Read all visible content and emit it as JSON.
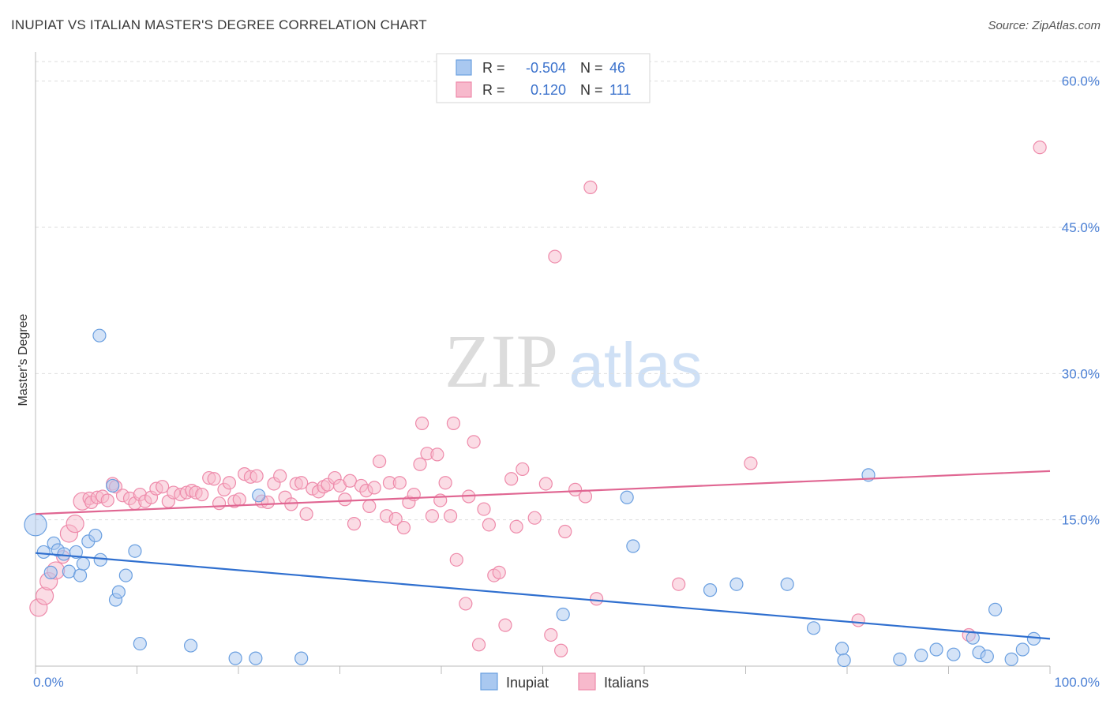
{
  "title": "INUPIAT VS ITALIAN MASTER'S DEGREE CORRELATION CHART",
  "source": "Source: ZipAtlas.com",
  "watermark": {
    "zip": "ZIP",
    "atlas": "atlas"
  },
  "colors": {
    "inupiat_fill": "#a9c8f0",
    "inupiat_stroke": "#6a9fe0",
    "inupiat_line": "#2f6fcf",
    "italians_fill": "#f7b9cc",
    "italians_stroke": "#ee8aaa",
    "italians_line": "#e06692",
    "tick": "#4a7fd4"
  },
  "chart_data": {
    "type": "scatter",
    "title": "INUPIAT VS ITALIAN MASTER'S DEGREE CORRELATION CHART",
    "xlabel": "",
    "ylabel": "Master's Degree",
    "xlim": [
      0,
      100
    ],
    "ylim": [
      0,
      62
    ],
    "x_tick_labels": [
      "0.0%",
      "100.0%"
    ],
    "y_ticks": [
      15,
      30,
      45,
      60
    ],
    "y_tick_labels": [
      "15.0%",
      "30.0%",
      "45.0%",
      "60.0%"
    ],
    "legend_position": "top-center",
    "legend": [
      {
        "name": "Inupiat",
        "r_label": "R =",
        "r": "-0.504",
        "n_label": "N =",
        "n": "46"
      },
      {
        "name": "Italians",
        "r_label": "R =",
        "r": "0.120",
        "n_label": "N =",
        "n": "111"
      }
    ],
    "series": [
      {
        "name": "Inupiat",
        "trend": {
          "x": [
            0,
            100
          ],
          "y": [
            11.6,
            2.8
          ]
        },
        "points": [
          [
            0,
            14.5,
            3
          ],
          [
            0.8,
            11.7,
            1
          ],
          [
            1.5,
            9.6,
            1
          ],
          [
            1.8,
            12.6,
            1
          ],
          [
            2.2,
            11.9,
            1
          ],
          [
            2.8,
            11.5,
            1
          ],
          [
            3.3,
            9.7,
            1
          ],
          [
            4.0,
            11.7,
            1
          ],
          [
            4.4,
            9.3,
            1
          ],
          [
            4.7,
            10.5,
            1
          ],
          [
            5.2,
            12.8,
            1
          ],
          [
            5.9,
            13.4,
            1
          ],
          [
            6.4,
            10.9,
            1
          ],
          [
            6.3,
            33.9,
            1
          ],
          [
            7.6,
            18.5,
            1
          ],
          [
            7.9,
            6.8,
            1
          ],
          [
            8.2,
            7.6,
            1
          ],
          [
            8.9,
            9.3,
            1
          ],
          [
            9.8,
            11.8,
            1
          ],
          [
            10.3,
            2.3,
            1
          ],
          [
            15.3,
            2.1,
            1
          ],
          [
            19.7,
            0.8,
            1
          ],
          [
            21.7,
            0.8,
            1
          ],
          [
            22.0,
            17.5,
            1
          ],
          [
            26.2,
            0.8,
            1
          ],
          [
            52.0,
            5.3,
            1
          ],
          [
            58.3,
            17.3,
            1
          ],
          [
            58.9,
            12.3,
            1
          ],
          [
            66.5,
            7.8,
            1
          ],
          [
            69.1,
            8.4,
            1
          ],
          [
            74.1,
            8.4,
            1
          ],
          [
            76.7,
            3.9,
            1
          ],
          [
            79.5,
            1.8,
            1
          ],
          [
            79.7,
            0.6,
            1
          ],
          [
            82.1,
            19.6,
            1
          ],
          [
            85.2,
            0.7,
            1
          ],
          [
            87.3,
            1.1,
            1
          ],
          [
            88.8,
            1.7,
            1
          ],
          [
            90.5,
            1.2,
            1
          ],
          [
            92.4,
            2.9,
            1
          ],
          [
            93.0,
            1.4,
            1
          ],
          [
            93.8,
            1.0,
            1
          ],
          [
            94.6,
            5.8,
            1
          ],
          [
            96.2,
            0.7,
            1
          ],
          [
            97.3,
            1.7,
            1
          ],
          [
            98.4,
            2.8,
            1
          ]
        ]
      },
      {
        "name": "Italians",
        "trend": {
          "x": [
            0,
            100
          ],
          "y": [
            15.6,
            20.0
          ]
        },
        "points": [
          [
            0.3,
            6.0,
            2
          ],
          [
            0.9,
            7.2,
            2
          ],
          [
            1.3,
            8.7,
            2
          ],
          [
            2.0,
            9.8,
            2
          ],
          [
            2.7,
            11.2,
            1
          ],
          [
            3.3,
            13.6,
            2
          ],
          [
            3.9,
            14.6,
            2
          ],
          [
            4.6,
            16.9,
            2
          ],
          [
            5.3,
            17.2,
            1
          ],
          [
            5.5,
            16.8,
            1
          ],
          [
            6.1,
            17.3,
            1
          ],
          [
            6.6,
            17.4,
            1
          ],
          [
            7.1,
            17.0,
            1
          ],
          [
            7.6,
            18.7,
            1
          ],
          [
            7.9,
            18.4,
            1
          ],
          [
            8.6,
            17.5,
            1
          ],
          [
            9.3,
            17.2,
            1
          ],
          [
            9.8,
            16.7,
            1
          ],
          [
            10.3,
            17.6,
            1
          ],
          [
            10.8,
            16.9,
            1
          ],
          [
            11.4,
            17.3,
            1
          ],
          [
            11.9,
            18.2,
            1
          ],
          [
            12.5,
            18.4,
            1
          ],
          [
            13.1,
            16.9,
            1
          ],
          [
            13.6,
            17.8,
            1
          ],
          [
            14.3,
            17.6,
            1
          ],
          [
            14.9,
            17.8,
            1
          ],
          [
            15.4,
            18.0,
            1
          ],
          [
            15.8,
            17.8,
            1
          ],
          [
            16.4,
            17.6,
            1
          ],
          [
            17.1,
            19.3,
            1
          ],
          [
            17.6,
            19.2,
            1
          ],
          [
            18.1,
            16.7,
            1
          ],
          [
            18.6,
            18.1,
            1
          ],
          [
            19.1,
            18.8,
            1
          ],
          [
            19.6,
            16.9,
            1
          ],
          [
            20.1,
            17.1,
            1
          ],
          [
            20.6,
            19.7,
            1
          ],
          [
            21.2,
            19.4,
            1
          ],
          [
            21.8,
            19.5,
            1
          ],
          [
            22.3,
            16.9,
            1
          ],
          [
            22.9,
            16.8,
            1
          ],
          [
            23.5,
            18.7,
            1
          ],
          [
            24.1,
            19.5,
            1
          ],
          [
            24.6,
            17.3,
            1
          ],
          [
            25.2,
            16.6,
            1
          ],
          [
            25.7,
            18.7,
            1
          ],
          [
            26.2,
            18.8,
            1
          ],
          [
            26.7,
            15.6,
            1
          ],
          [
            27.3,
            18.2,
            1
          ],
          [
            27.9,
            17.9,
            1
          ],
          [
            28.4,
            18.4,
            1
          ],
          [
            28.8,
            18.6,
            1
          ],
          [
            29.5,
            19.3,
            1
          ],
          [
            30.0,
            18.5,
            1
          ],
          [
            30.5,
            17.1,
            1
          ],
          [
            31.0,
            19.0,
            1
          ],
          [
            31.4,
            14.6,
            1
          ],
          [
            32.1,
            18.5,
            1
          ],
          [
            32.6,
            18.0,
            1
          ],
          [
            32.9,
            16.4,
            1
          ],
          [
            33.4,
            18.3,
            1
          ],
          [
            33.9,
            21.0,
            1
          ],
          [
            34.6,
            15.4,
            1
          ],
          [
            34.9,
            18.8,
            1
          ],
          [
            35.5,
            15.1,
            1
          ],
          [
            35.9,
            18.8,
            1
          ],
          [
            36.3,
            14.2,
            1
          ],
          [
            36.8,
            16.8,
            1
          ],
          [
            37.3,
            17.6,
            1
          ],
          [
            37.9,
            20.7,
            1
          ],
          [
            38.1,
            24.9,
            1
          ],
          [
            38.6,
            21.8,
            1
          ],
          [
            39.1,
            15.4,
            1
          ],
          [
            39.6,
            21.7,
            1
          ],
          [
            39.9,
            17.0,
            1
          ],
          [
            40.4,
            18.8,
            1
          ],
          [
            40.9,
            15.4,
            1
          ],
          [
            41.2,
            24.9,
            1
          ],
          [
            41.5,
            10.9,
            1
          ],
          [
            42.4,
            6.4,
            1
          ],
          [
            42.7,
            17.4,
            1
          ],
          [
            43.2,
            23.0,
            1
          ],
          [
            43.7,
            2.2,
            1
          ],
          [
            44.2,
            16.1,
            1
          ],
          [
            44.7,
            14.5,
            1
          ],
          [
            45.2,
            9.3,
            1
          ],
          [
            45.7,
            9.6,
            1
          ],
          [
            46.3,
            4.2,
            1
          ],
          [
            46.9,
            19.2,
            1
          ],
          [
            47.4,
            14.3,
            1
          ],
          [
            48.0,
            20.2,
            1
          ],
          [
            49.2,
            15.2,
            1
          ],
          [
            50.3,
            18.7,
            1
          ],
          [
            50.8,
            3.2,
            1
          ],
          [
            51.8,
            1.6,
            1
          ],
          [
            52.2,
            13.8,
            1
          ],
          [
            53.2,
            18.1,
            1
          ],
          [
            54.2,
            17.4,
            1
          ],
          [
            54.7,
            49.1,
            1
          ],
          [
            55.3,
            6.9,
            1
          ],
          [
            51.2,
            42.0,
            1
          ],
          [
            63.4,
            8.4,
            1
          ],
          [
            70.5,
            20.8,
            1
          ],
          [
            81.1,
            4.7,
            1
          ],
          [
            92.0,
            3.2,
            1
          ],
          [
            99.0,
            53.2,
            1
          ]
        ]
      }
    ]
  }
}
